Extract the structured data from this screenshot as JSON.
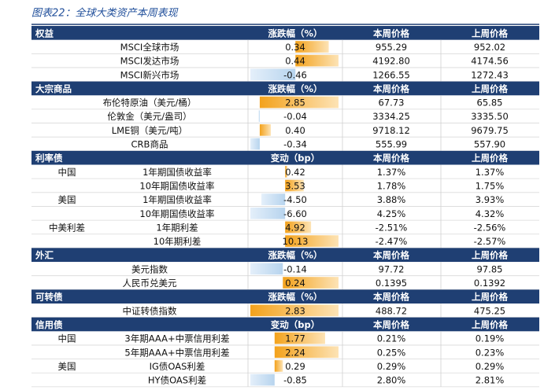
{
  "title": "图表22：全球大类资产本周表现",
  "sections": [
    {
      "name": "权益",
      "headers": [
        "涨跌幅（%）",
        "本周价格",
        "上周价格"
      ],
      "rows": [
        {
          "label": "MSCI全球市场",
          "cells": [
            "0.34",
            "955.29",
            "952.02"
          ]
        },
        {
          "label": "MSCI发达市场",
          "cells": [
            "0.44",
            "4192.80",
            "4174.56"
          ]
        },
        {
          "label": "MSCI新兴市场",
          "cells": [
            "-0.46",
            "1266.55",
            "1272.43"
          ]
        }
      ]
    },
    {
      "name": "大宗商品",
      "headers": [
        "涨跌幅（%）",
        "本周价格",
        "上周价格"
      ],
      "rows": [
        {
          "label": "布伦特原油（美元/桶）",
          "cells": [
            "2.85",
            "67.73",
            "65.85"
          ]
        },
        {
          "label": "伦敦金（美元/盎司）",
          "cells": [
            "-0.04",
            "3334.25",
            "3335.50"
          ]
        },
        {
          "label": "LME铜（美元/吨）",
          "cells": [
            "0.40",
            "9718.12",
            "9679.75"
          ]
        },
        {
          "label": "CRB商品",
          "cells": [
            "-0.34",
            "555.99",
            "557.90"
          ]
        }
      ]
    },
    {
      "name": "利率债",
      "headers": [
        "变动（bp）",
        "本周价格",
        "上周价格"
      ],
      "rows": [
        {
          "group": "中国",
          "label": "1年期国债收益率",
          "cells": [
            "0.42",
            "1.37%",
            "1.37%"
          ]
        },
        {
          "label": "10年期国债收益率",
          "cells": [
            "3.53",
            "1.78%",
            "1.75%"
          ]
        },
        {
          "group": "美国",
          "label": "1年期国债收益率",
          "cells": [
            "-4.50",
            "3.88%",
            "3.93%"
          ]
        },
        {
          "label": "10年期国债收益率",
          "cells": [
            "-6.60",
            "4.25%",
            "4.32%"
          ]
        },
        {
          "group": "中美利差",
          "label": "1年期利差",
          "cells": [
            "4.92",
            "-2.51%",
            "-2.56%"
          ]
        },
        {
          "label": "10年期利差",
          "cells": [
            "10.13",
            "-2.47%",
            "-2.57%"
          ]
        }
      ]
    },
    {
      "name": "外汇",
      "headers": [
        "涨跌幅（%）",
        "本周价格",
        "上周价格"
      ],
      "rows": [
        {
          "label": "美元指数",
          "cells": [
            "-0.14",
            "97.72",
            "97.85"
          ]
        },
        {
          "label": "人民币兑美元",
          "cells": [
            "0.24",
            "0.1395",
            "0.1392"
          ]
        }
      ]
    },
    {
      "name": "可转债",
      "headers": [
        "涨跌幅（%）",
        "本周价格",
        "上周价格"
      ],
      "rows": [
        {
          "label": "中证转债指数",
          "cells": [
            "2.83",
            "488.72",
            "475.25"
          ]
        }
      ]
    },
    {
      "name": "信用债",
      "headers": [
        "变动（bp）",
        "本周价格",
        "上周价格"
      ],
      "rows": [
        {
          "group": "中国",
          "label": "3年期AAA+中票信用利差",
          "cells": [
            "1.77",
            "0.21%",
            "0.19%"
          ]
        },
        {
          "label": "5年期AAA+中票信用利差",
          "cells": [
            "2.24",
            "0.25%",
            "0.23%"
          ]
        },
        {
          "group": "美国",
          "label": "IG债OAS利差",
          "cells": [
            "0.29",
            "0.29%",
            "0.29%"
          ]
        },
        {
          "label": "HY债OAS利差",
          "cells": [
            "-0.85",
            "2.80%",
            "2.81%"
          ]
        }
      ]
    }
  ]
}
